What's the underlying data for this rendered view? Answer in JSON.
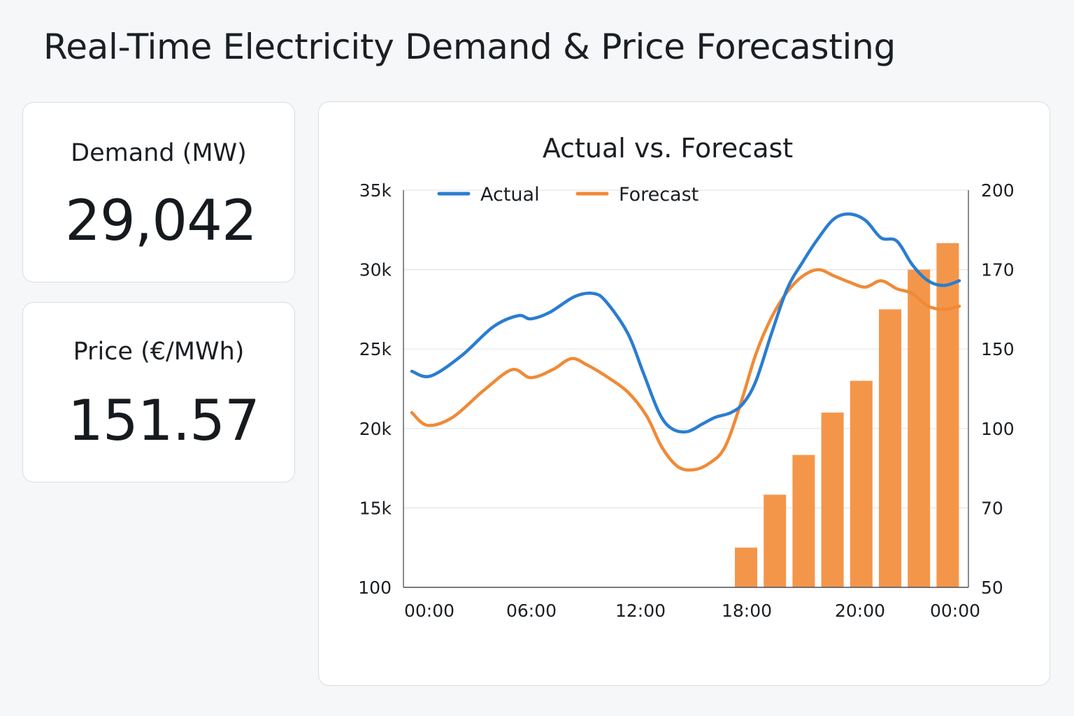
{
  "header": {
    "title": "Real-Time Electricity Demand & Price Forecasting"
  },
  "kpis": {
    "demand": {
      "label": "Demand (MW)",
      "value": "29,042"
    },
    "price": {
      "label": "Price (€/MWh)",
      "value": "151.57"
    }
  },
  "colors": {
    "actual": "#2a7dd1",
    "forecast": "#f08a36",
    "bars": "#f4964a",
    "grid": "#e3e6e9",
    "axis": "#4a4f55"
  },
  "chart_data": {
    "type": "line",
    "title": "Actual vs. Forecast",
    "legend": {
      "position": "top-left",
      "entries": [
        "Actual",
        "Forecast"
      ]
    },
    "grid": true,
    "x_ticks": [
      "00:00",
      "06:00",
      "12:00",
      "18:00",
      "20:00",
      "00:00"
    ],
    "y_left": {
      "ticks": [
        "100",
        "15k",
        "20k",
        "25k",
        "30k",
        "35k"
      ],
      "range": [
        10000,
        35000
      ]
    },
    "y_right": {
      "ticks": [
        "50",
        "70",
        "100",
        "150",
        "170",
        "200"
      ]
    },
    "series": [
      {
        "name": "Actual",
        "axis": "left",
        "type": "line",
        "points": [
          [
            0.0,
            23600
          ],
          [
            0.6,
            23300
          ],
          [
            1.6,
            24600
          ],
          [
            2.6,
            26400
          ],
          [
            3.4,
            27100
          ],
          [
            3.8,
            26900
          ],
          [
            4.4,
            27300
          ],
          [
            5.2,
            28300
          ],
          [
            5.8,
            28500
          ],
          [
            6.2,
            28000
          ],
          [
            6.9,
            26000
          ],
          [
            7.4,
            23500
          ],
          [
            7.9,
            21000
          ],
          [
            8.3,
            20000
          ],
          [
            8.8,
            19800
          ],
          [
            9.3,
            20300
          ],
          [
            9.7,
            20700
          ],
          [
            10.2,
            21000
          ],
          [
            10.6,
            21600
          ],
          [
            11.0,
            23000
          ],
          [
            11.5,
            26000
          ],
          [
            12.0,
            28800
          ],
          [
            12.5,
            30500
          ],
          [
            13.0,
            32000
          ],
          [
            13.5,
            33200
          ],
          [
            14.0,
            33500
          ],
          [
            14.5,
            33100
          ],
          [
            15.0,
            32000
          ],
          [
            15.5,
            31800
          ],
          [
            16.0,
            30300
          ],
          [
            16.5,
            29300
          ],
          [
            17.0,
            29000
          ],
          [
            17.5,
            29300
          ]
        ]
      },
      {
        "name": "Forecast",
        "axis": "left",
        "type": "line",
        "points": [
          [
            0.0,
            21000
          ],
          [
            0.5,
            20200
          ],
          [
            1.3,
            20700
          ],
          [
            2.3,
            22400
          ],
          [
            3.2,
            23700
          ],
          [
            3.8,
            23200
          ],
          [
            4.5,
            23700
          ],
          [
            5.1,
            24400
          ],
          [
            5.6,
            24000
          ],
          [
            6.2,
            23300
          ],
          [
            6.9,
            22300
          ],
          [
            7.5,
            20800
          ],
          [
            8.0,
            18800
          ],
          [
            8.5,
            17600
          ],
          [
            9.0,
            17400
          ],
          [
            9.5,
            17800
          ],
          [
            10.0,
            18800
          ],
          [
            10.5,
            21500
          ],
          [
            11.0,
            24700
          ],
          [
            11.5,
            27000
          ],
          [
            12.0,
            28600
          ],
          [
            12.5,
            29600
          ],
          [
            13.0,
            30000
          ],
          [
            13.5,
            29600
          ],
          [
            14.0,
            29200
          ],
          [
            14.5,
            28900
          ],
          [
            15.0,
            29300
          ],
          [
            15.5,
            28800
          ],
          [
            16.0,
            28500
          ],
          [
            16.5,
            27700
          ],
          [
            17.0,
            27500
          ],
          [
            17.5,
            27700
          ]
        ]
      },
      {
        "name": "Price",
        "axis": "right",
        "type": "bar",
        "values": [
          60,
          75,
          90,
          110,
          130,
          160,
          170,
          180
        ]
      }
    ]
  }
}
